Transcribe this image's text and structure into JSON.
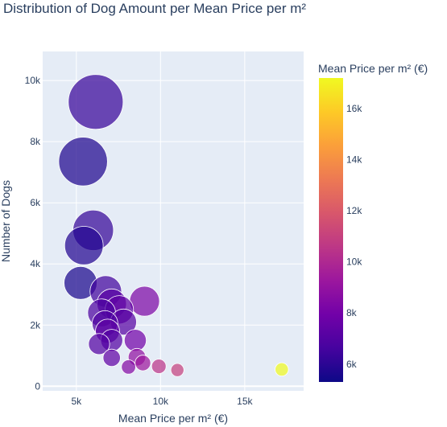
{
  "chart_data": {
    "type": "scatter",
    "title": "Distribution of Dog Amount per Mean Price per m²",
    "xlabel": "Mean Price per m² (€)",
    "ylabel": "Number of Dogs",
    "xlim": [
      3000,
      18500
    ],
    "ylim": [
      -150,
      10950
    ],
    "x_ticks": [
      5000,
      10000,
      15000
    ],
    "x_tick_labels": [
      "5k",
      "10k",
      "15k"
    ],
    "y_ticks": [
      0,
      2000,
      4000,
      6000,
      8000,
      10000
    ],
    "y_tick_labels": [
      "0",
      "2k",
      "4k",
      "6k",
      "8k",
      "10k"
    ],
    "grid": true,
    "bubble_size_encodes": "Number of Dogs",
    "colorbar": {
      "title": "Mean Price per m² (€)",
      "range": [
        5300,
        17200
      ],
      "ticks": [
        6000,
        8000,
        10000,
        12000,
        14000,
        16000
      ],
      "tick_labels": [
        "6k",
        "8k",
        "10k",
        "12k",
        "14k",
        "16k"
      ],
      "colorscale": [
        "#0d0887",
        "#46039f",
        "#7201a8",
        "#9c179e",
        "#bd3786",
        "#d8576b",
        "#ed7953",
        "#fb9f3a",
        "#fdca26",
        "#f0f921"
      ]
    },
    "points": [
      {
        "x": 6150,
        "y": 9300,
        "c": 6300
      },
      {
        "x": 5400,
        "y": 7350,
        "c": 5700
      },
      {
        "x": 6000,
        "y": 5100,
        "c": 6200
      },
      {
        "x": 5450,
        "y": 4600,
        "c": 5800
      },
      {
        "x": 5250,
        "y": 3380,
        "c": 5600
      },
      {
        "x": 6750,
        "y": 3100,
        "c": 6500
      },
      {
        "x": 9050,
        "y": 2780,
        "c": 8300
      },
      {
        "x": 7100,
        "y": 2700,
        "c": 7200
      },
      {
        "x": 6500,
        "y": 2400,
        "c": 6800
      },
      {
        "x": 7550,
        "y": 2500,
        "c": 7400
      },
      {
        "x": 7800,
        "y": 2100,
        "c": 7100
      },
      {
        "x": 6700,
        "y": 2050,
        "c": 6900
      },
      {
        "x": 6850,
        "y": 1800,
        "c": 7300
      },
      {
        "x": 7100,
        "y": 1500,
        "c": 7000
      },
      {
        "x": 8500,
        "y": 1500,
        "c": 7900
      },
      {
        "x": 6350,
        "y": 1380,
        "c": 7000
      },
      {
        "x": 7100,
        "y": 930,
        "c": 7400
      },
      {
        "x": 8600,
        "y": 950,
        "c": 8900
      },
      {
        "x": 8950,
        "y": 760,
        "c": 9300
      },
      {
        "x": 9900,
        "y": 650,
        "c": 10500
      },
      {
        "x": 8100,
        "y": 630,
        "c": 8500
      },
      {
        "x": 11000,
        "y": 530,
        "c": 11000
      },
      {
        "x": 17200,
        "y": 550,
        "c": 17200
      }
    ]
  }
}
